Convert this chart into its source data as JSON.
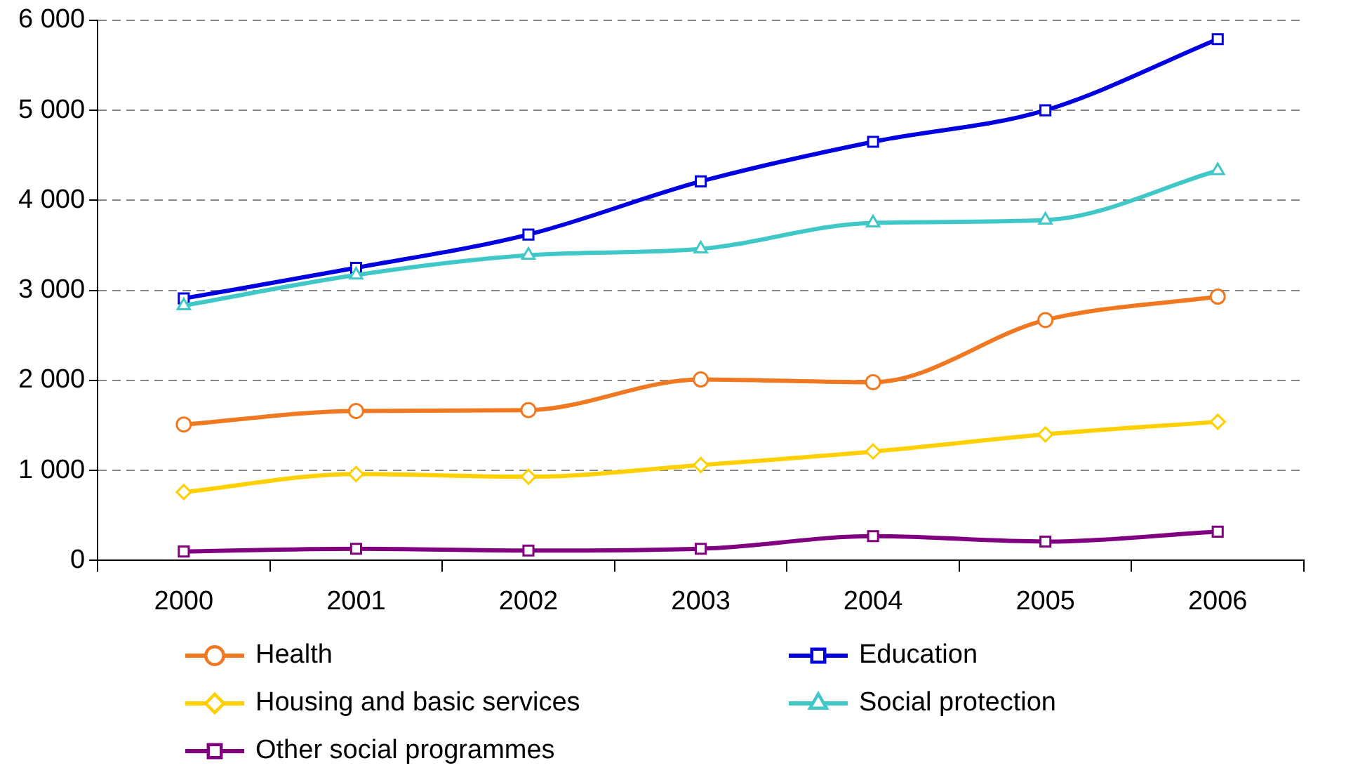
{
  "chart_data": {
    "type": "line",
    "categories": [
      "2000",
      "2001",
      "2002",
      "2003",
      "2004",
      "2005",
      "2006"
    ],
    "series": [
      {
        "name": "Health",
        "color": "#f07820",
        "marker": "circle",
        "values": [
          1510,
          1660,
          1670,
          2010,
          1980,
          2670,
          2930
        ]
      },
      {
        "name": "Education",
        "color": "#0000e0",
        "marker": "square",
        "values": [
          2910,
          3250,
          3620,
          4210,
          4650,
          5000,
          5790
        ]
      },
      {
        "name": "Housing and basic services",
        "color": "#ffd000",
        "marker": "diamond",
        "values": [
          760,
          960,
          930,
          1060,
          1210,
          1400,
          1540
        ]
      },
      {
        "name": "Social protection",
        "color": "#40c8c8",
        "marker": "triangle",
        "values": [
          2830,
          3170,
          3390,
          3460,
          3750,
          3780,
          4330
        ]
      },
      {
        "name": "Other social programmes",
        "color": "#800080",
        "marker": "square",
        "values": [
          100,
          130,
          110,
          130,
          270,
          210,
          320
        ]
      }
    ],
    "ylim": [
      0,
      6000
    ],
    "yticks": [
      0,
      {
        "value": 1000,
        "label": "1 000"
      },
      {
        "value": 2000,
        "label": "2 000"
      },
      {
        "value": 3000,
        "label": "3 000"
      },
      {
        "value": 4000,
        "label": "4 000"
      },
      {
        "value": 5000,
        "label": "5 000"
      },
      {
        "value": 6000,
        "label": "6 000"
      }
    ],
    "grid": "y",
    "legend": "bottom",
    "line_style": "solid"
  }
}
